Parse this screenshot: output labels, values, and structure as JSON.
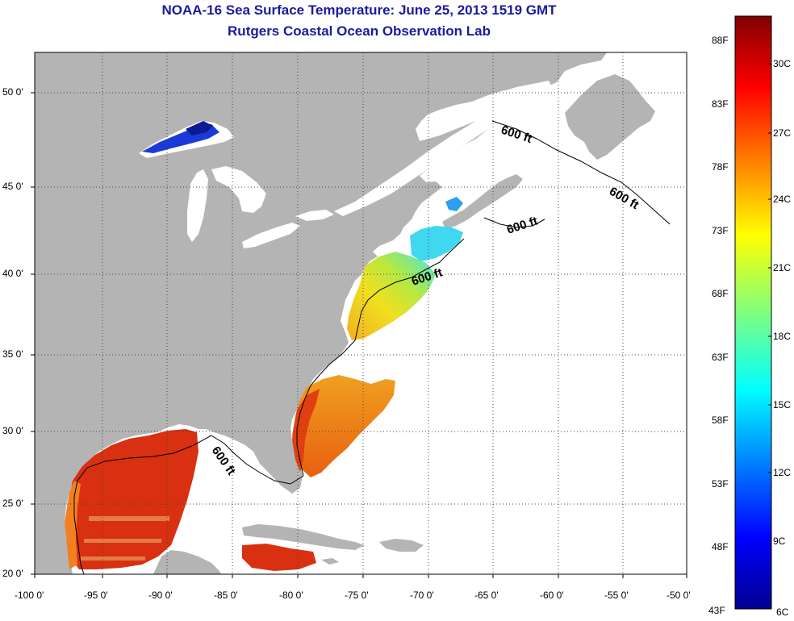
{
  "header": {
    "title": "NOAA-16 Sea Surface Temperature:  June 25, 2013 1519 GMT",
    "subtitle": "Rutgers Coastal Ocean Observation Lab"
  },
  "map": {
    "region": "US East Coast, Gulf of Mexico, Great Lakes",
    "lon_range": [
      -100,
      -50
    ],
    "lat_range": [
      20,
      52.5
    ],
    "lon_ticks": [
      "-100 0'",
      "-95 0'",
      "-90 0'",
      "-85 0'",
      "-80 0'",
      "-75 0'",
      "-70 0'",
      "-65 0'",
      "-60 0'",
      "-55 0'",
      "-50 0'"
    ],
    "lat_ticks": [
      "20 0'",
      "25 0'",
      "30 0'",
      "35 0'",
      "40 0'",
      "45 0'",
      "50 0'"
    ],
    "contour_labels": [
      "600 ft",
      "600 ft",
      "600 ft",
      "600 ft",
      "600 ft"
    ],
    "land_color": "#b4b4b4",
    "grid": "dotted"
  },
  "colorbar": {
    "fahrenheit_labels": [
      "88F",
      "83F",
      "78F",
      "73F",
      "68F",
      "63F",
      "58F",
      "53F",
      "48F",
      "43F"
    ],
    "celsius_labels": [
      "30C",
      "27C",
      "24C",
      "21C",
      "18C",
      "15C",
      "12C",
      "9C",
      "6C"
    ],
    "colormap": "jet",
    "range_c": [
      6,
      31
    ]
  }
}
